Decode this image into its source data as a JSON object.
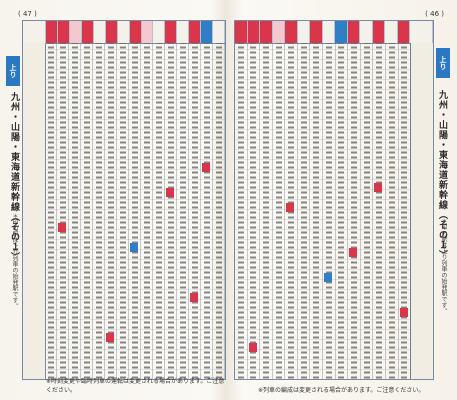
{
  "left_page": {
    "page_number": "( 47 )",
    "direction_tab": "上り",
    "side_title": "九州・山陽・東海道新幹線（その１）",
    "side_note": "＊印の駅は上り列車の始発駅です。",
    "footer_note": "※時刻変更や臨時列車の運転は変更される場合があります。ご注意ください。"
  },
  "right_page": {
    "page_number": "( 46 )",
    "direction_tab": "上り",
    "side_title": "九州・山陽・東海道新幹線（その１）",
    "side_note": "＊印の駅は上り列車の始発駅です。",
    "footer_note": "※列車の編成は変更される場合があります。ご注意ください。"
  }
}
